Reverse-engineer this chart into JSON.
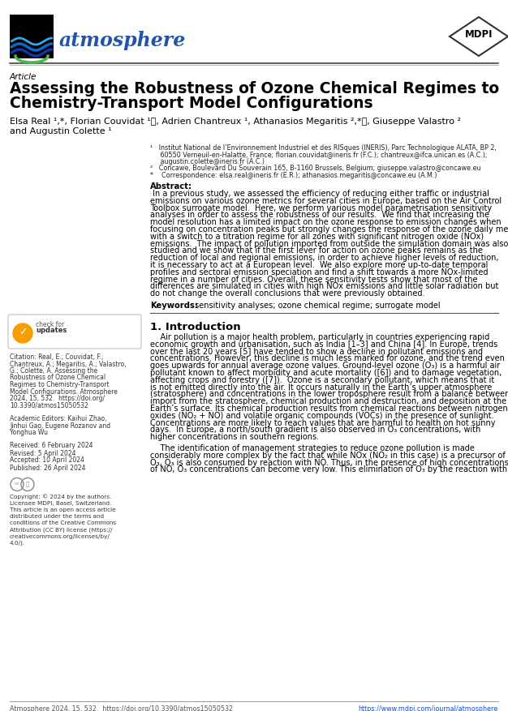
{
  "bg_color": "#ffffff",
  "journal_name": "atmosphere",
  "journal_color": "#2255aa",
  "mdpi_text": "MDPI",
  "article_label": "Article",
  "title_line1": "Assessing the Robustness of Ozone Chemical Regimes to",
  "title_line2": "Chemistry-Transport Model Configurations",
  "author_line1": "Elsa Real ¹,*, Florian Couvidat ¹ⓘ, Adrien Chantreux ¹, Athanasios Megaritis ²,*ⓘ, Giuseppe Valastro ²",
  "author_line2": "and Augustin Colette ¹",
  "aff1": "¹   Institut National de l’Environnement Industriel et des RISques (INERIS), Parc Technologique ALATA, BP 2,",
  "aff1b": "     60550 Verneuil-en-Halatte, France; florian.couvidat@ineris.fr (F.C.); chantreux@ifca.unican.es (A.C.);",
  "aff1c": "     augustin.colette@ineris.fr (A.C.)",
  "aff2": "²   Concawe, Boulevard Du Souverain 165, B-1160 Brussels, Belgium; giuseppe.valastro@concawe.eu",
  "aff3": "*    Correspondence: elsa.real@ineris.fr (E.R.); athanasios.megaritis@concawe.eu (A.M.)",
  "abstract_bold": "Abstract:",
  "abstract_body": " In a previous study, we assessed the efficiency of reducing either traffic or industrial emissions on various ozone metrics for several cities in Europe, based on the Air Control Toolbox surrogate model.  Here, we perform various model parametrisation sensitivity analyses in order to assess the robustness of our results.  We find that increasing the model resolution has a limited impact on the ozone response to emission changes when focusing on concentration peaks but strongly changes the response of the ozone daily mean with a switch to a titration regime for all zones with significant nitrogen oxide (NOx) emissions.  The impact of pollution imported from outside the simulation domain was also studied and we show that if the first lever for action on ozone peaks remains as the reduction of local and regional emissions, in order to achieve higher levels of reduction, it is necessary to act at a European level.  We also explore more up-to-date temporal profiles and sectoral emission speciation and find a shift towards a more NOx-limited regime in a number of cities. Overall, these sensitivity tests show that most of the differences are simulated in cities with high NOx emissions and little solar radiation but do not change the overall conclusions that were previously obtained.",
  "keywords_bold": "Keywords:",
  "keywords_body": " sensitivity analyses; ozone chemical regime; surrogate model",
  "section1": "1. Introduction",
  "intro_p1": "Air pollution is a major health problem, particularly in countries experiencing rapid economic growth and urbanisation, such as India [1–3] and China [4]. In Europe, trends over the last 20 years [5] have tended to show a decline in pollutant emissions and concentrations. However, this decline is much less marked for ozone, and the trend even goes upwards for annual average ozone values. Ground-level ozone (O₃) is a harmful air pollutant known to affect morbidity and acute mortality ([6]) and to damage vegetation, affecting crops and forestry ([7]).  Ozone is a secondary pollutant, which means that it is not emitted directly into the air. It occurs naturally in the Earth’s upper atmosphere (stratosphere) and concentrations in the lower troposphere result from a balance between import from the stratosphere, chemical production and destruction, and deposition at the Earth’s surface. Its chemical production results from chemical reactions between nitrogen oxides (NO₂ + NO) and volatile organic compounds (VOCs) in the presence of sunlight. Concentrations are more likely to reach values that are harmful to health on hot sunny days.  In Europe, a north/south gradient is also observed in O₃ concentrations, with higher concentrations in southern regions.",
  "intro_p2": "The identification of management strategies to reduce ozone pollution is made considerably more complex by the fact that while NOx (NO₂ in this case) is a precursor of O₃, O₃ is also consumed by reaction with NO. Thus, in the presence of high concentrations of NO, O₃ concentrations can become very low. This elimination of O₃ by the reaction with",
  "citation_text": "Citation: Real, E.; Couvidat, F.;\nChantreux, A.; Megaritis, A.; Valastro,\nG.; Colette, A. Assessing the\nRobustness of Ozone Chemical\nRegimes to Chemistry-Transport\nModel Configurations. Atmosphere\n2024, 15, 532.  https://doi.org/\n10.3390/atmos15050532",
  "editors_text": "Academic Editors: Kaihui Zhao,\nJinhui Gao, Eugene Rozanov and\nYonghua Wu",
  "received_text": "Received: 6 February 2024",
  "revised_text": "Revised: 5 April 2024",
  "accepted_text": "Accepted: 10 April 2024",
  "published_text": "Published: 26 April 2024",
  "copyright_text": "Copyright: © 2024 by the authors.\nLicensee MDPI, Basel, Switzerland.\nThis article is an open access article\ndistributed under the terms and\nconditions of the Creative Commons\nAttribution (CC BY) license (https://\ncreativecommons.org/licenses/by/\n4.0/).",
  "footer_left": "Atmosphere 2024, 15, 532.  https://doi.org/10.3390/atmos15050532",
  "footer_right": "https://www.mdpi.com/journal/atmosphere",
  "check_color": "#f5a000",
  "link_color": "#1155cc"
}
